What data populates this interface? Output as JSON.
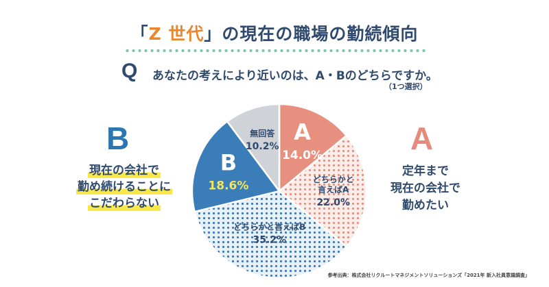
{
  "title": {
    "quote_open": "「",
    "highlight": "Z 世代",
    "quote_close": "」",
    "rest": "の現在の職場の勤続傾向"
  },
  "question": {
    "mark": "Q",
    "text": "あなたの考えにより近いのは、A・Bのどちらですか。",
    "note": "（1つ選択）"
  },
  "left_side": {
    "letter": "B",
    "lines": [
      "現在の会社で",
      "勤め続けることに",
      "こだわらない"
    ]
  },
  "right_side": {
    "letter": "A",
    "lines": [
      "定年まで",
      "現在の会社で",
      "勤めたい"
    ]
  },
  "source": "参考出典：株式会社リクルートマネジメントソリューションズ「2021年 新入社員意識調査」",
  "chart_data": {
    "type": "pie",
    "slices": [
      {
        "name": "A",
        "value": 14.0,
        "label": "A",
        "pct": "14.0",
        "color": "#e8907f",
        "pattern": "solid"
      },
      {
        "name": "どちらかと言えばA",
        "value": 22.0,
        "label_lines": [
          "どちらかと",
          "言えばA"
        ],
        "pct": "22.0",
        "color": "#e8907f",
        "pattern": "dots"
      },
      {
        "name": "どちらかと言えばB",
        "value": 35.2,
        "label_lines": [
          "どちらかと言えばB"
        ],
        "pct": "35.2",
        "color": "#3a7db8",
        "pattern": "dots"
      },
      {
        "name": "B",
        "value": 18.6,
        "label": "B",
        "pct": "18.6",
        "color": "#3a7db8",
        "pattern": "solid"
      },
      {
        "name": "無回答",
        "value": 10.2,
        "label_lines": [
          "無回答"
        ],
        "pct": "10.2",
        "color": "#cfd2d6",
        "pattern": "solid"
      }
    ],
    "unit": "%"
  }
}
